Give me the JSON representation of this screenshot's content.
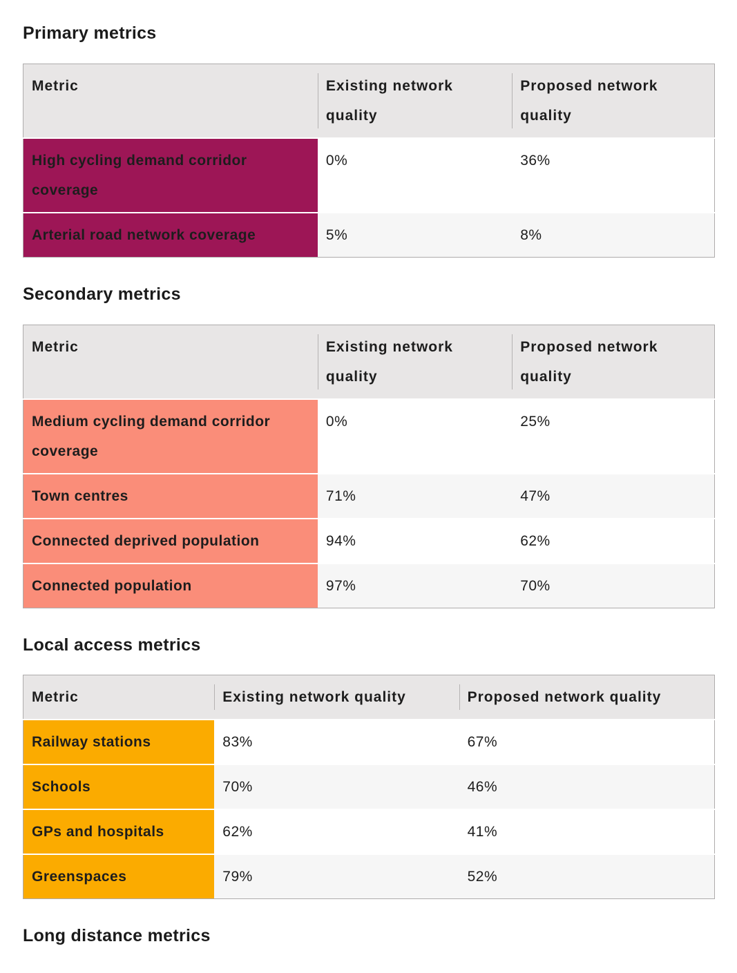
{
  "colors": {
    "primary_accent": "#9d1656",
    "secondary_accent": "#fa8d79",
    "local_access_accent": "#fbab00",
    "header_bg": "#e8e6e6",
    "zebra_row_bg": "#f6f6f6",
    "table_border": "#aeabab",
    "text": "#1d1d1d"
  },
  "sections": [
    {
      "heading": "Primary metrics",
      "accent_color": "#9d1656",
      "table": {
        "headers": [
          "Metric",
          "Existing network quality",
          "Proposed network quality"
        ],
        "rows": [
          {
            "metric": "High cycling demand corridor coverage",
            "existing": "0%",
            "proposed": "36%"
          },
          {
            "metric": "Arterial road network coverage",
            "existing": "5%",
            "proposed": "8%"
          }
        ]
      }
    },
    {
      "heading": "Secondary metrics",
      "accent_color": "#fa8d79",
      "table": {
        "headers": [
          "Metric",
          "Existing network quality",
          "Proposed network quality"
        ],
        "rows": [
          {
            "metric": "Medium cycling demand corridor coverage",
            "existing": "0%",
            "proposed": "25%"
          },
          {
            "metric": "Town centres",
            "existing": "71%",
            "proposed": "47%"
          },
          {
            "metric": "Connected deprived population",
            "existing": "94%",
            "proposed": "62%"
          },
          {
            "metric": "Connected population",
            "existing": "97%",
            "proposed": "70%"
          }
        ]
      }
    },
    {
      "heading": "Local access metrics",
      "accent_color": "#fbab00",
      "table": {
        "headers": [
          "Metric",
          "Existing network quality",
          "Proposed network quality"
        ],
        "rows": [
          {
            "metric": "Railway stations",
            "existing": "83%",
            "proposed": "67%"
          },
          {
            "metric": "Schools",
            "existing": "70%",
            "proposed": "46%"
          },
          {
            "metric": "GPs and hospitals",
            "existing": "62%",
            "proposed": "41%"
          },
          {
            "metric": "Greenspaces",
            "existing": "79%",
            "proposed": "52%"
          }
        ]
      }
    },
    {
      "heading": "Long distance metrics"
    }
  ]
}
